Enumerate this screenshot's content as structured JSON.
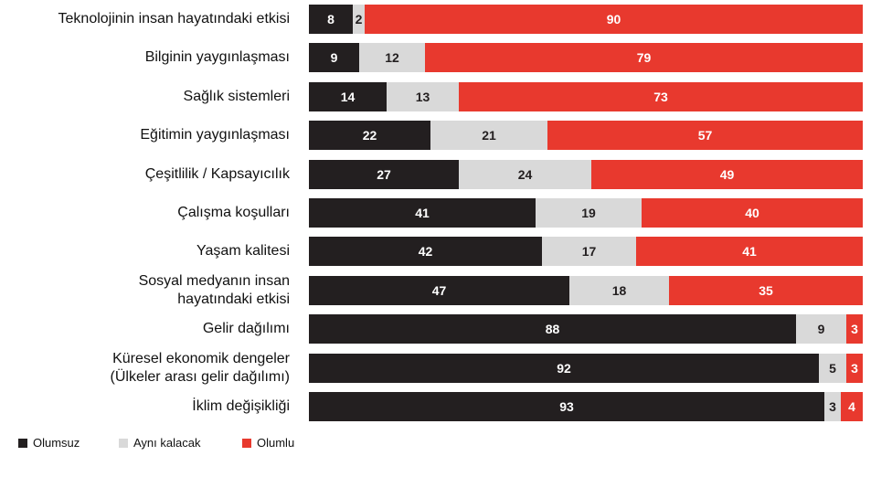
{
  "chart_data": {
    "type": "bar",
    "orientation": "horizontal",
    "stacked": true,
    "title": "",
    "xlabel": "",
    "ylabel": "",
    "xlim": [
      0,
      100
    ],
    "grid": false,
    "legend_placement": "bottom-left",
    "categories": [
      "Teknolojinin insan hayatındaki etkisi",
      "Bilginin yaygınlaşması",
      "Sağlık sistemleri",
      "Eğitimin yaygınlaşması",
      "Çeşitlilik / Kapsayıcılık",
      "Çalışma koşulları",
      "Yaşam kalitesi",
      "Sosyal medyanın insan hayatındaki etkisi",
      "Gelir dağılımı",
      "Küresel ekonomik dengeler (Ülkeler arası gelir dağılımı)",
      "İklim değişikliği"
    ],
    "category_lines": [
      [
        "Teknolojinin insan hayatındaki etkisi"
      ],
      [
        "Bilginin yaygınlaşması"
      ],
      [
        "Sağlık sistemleri"
      ],
      [
        "Eğitimin yaygınlaşması"
      ],
      [
        "Çeşitlilik / Kapsayıcılık"
      ],
      [
        "Çalışma koşulları"
      ],
      [
        "Yaşam kalitesi"
      ],
      [
        "Sosyal medyanın insan",
        "hayatındaki etkisi"
      ],
      [
        "Gelir dağılımı"
      ],
      [
        "Küresel ekonomik dengeler",
        "(Ülkeler arası gelir dağılımı)"
      ],
      [
        "İklim değişikliği"
      ]
    ],
    "series": [
      {
        "name": "Olumsuz",
        "color": "#231f20",
        "text_color": "#ffffff",
        "values": [
          8,
          9,
          14,
          22,
          27,
          41,
          42,
          47,
          88,
          92,
          93
        ]
      },
      {
        "name": "Aynı kalacak",
        "color": "#d9d9d9",
        "text_color": "#231f20",
        "values": [
          2,
          12,
          13,
          21,
          24,
          19,
          17,
          18,
          9,
          5,
          3
        ]
      },
      {
        "name": "Olumlu",
        "color": "#e8392e",
        "text_color": "#ffffff",
        "values": [
          90,
          79,
          73,
          57,
          49,
          40,
          41,
          35,
          3,
          3,
          4
        ]
      }
    ]
  }
}
